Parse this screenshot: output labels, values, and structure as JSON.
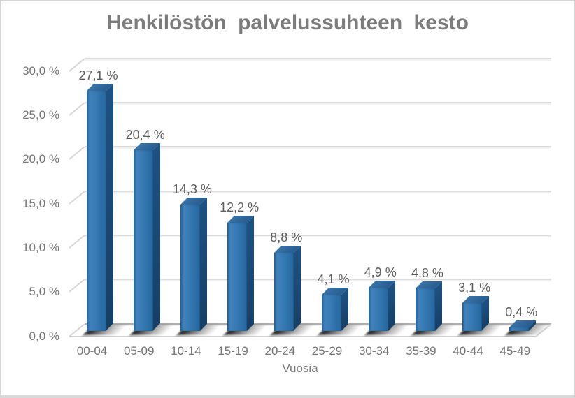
{
  "chart_data": {
    "type": "bar",
    "style": "3d-column",
    "title": "Henkilöstön palvelussuhteen kesto",
    "xlabel": "Vuosia",
    "ylabel": "",
    "categories": [
      "00-04",
      "05-09",
      "10-14",
      "15-19",
      "20-24",
      "25-29",
      "30-34",
      "35-39",
      "40-44",
      "45-49"
    ],
    "values": [
      27.1,
      20.4,
      14.3,
      12.2,
      8.8,
      4.1,
      4.9,
      4.8,
      3.1,
      0.4
    ],
    "data_labels": [
      "27,1 %",
      "20,4 %",
      "14,3 %",
      "12,2 %",
      "8,8 %",
      "4,1 %",
      "4,9 %",
      "4,8 %",
      "3,1 %",
      "0,4 %"
    ],
    "ylim": [
      0,
      30
    ],
    "ytick_step": 5,
    "ytick_labels": [
      "0,0 %",
      "5,0 %",
      "10,0 %",
      "15,0 %",
      "20,0 %",
      "25,0 %",
      "30,0 %"
    ],
    "grid": true,
    "legend": false,
    "colors": {
      "bar_front": "#3377b1",
      "bar_front_highlight": "#4383bd",
      "bar_side": "#1a4a74",
      "bar_top": "#2a5f93",
      "gridline": "#dcdcdc",
      "zero_line": "#b0b0b0",
      "title_text": "#7c7c7c",
      "data_label_text": "#5d5d5d",
      "axis_text": "#767676",
      "frame_border": "#d9d9d9"
    }
  }
}
